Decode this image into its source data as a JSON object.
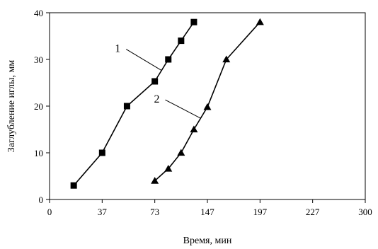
{
  "chart_data": {
    "type": "line",
    "title": "",
    "xlabel": "Время, мин",
    "ylabel": "Заглубление иглы, мм",
    "x_tick_labels": [
      "0",
      "37",
      "73",
      "147",
      "197",
      "227",
      "300"
    ],
    "y_tick_labels": [
      "0",
      "10",
      "20",
      "30",
      "40"
    ],
    "ylim": [
      0,
      40
    ],
    "grid": false,
    "legend": "none",
    "colors": {
      "line": "#000000",
      "axis": "#000000"
    },
    "series": [
      {
        "name": "1",
        "marker": "square",
        "x": [
          17,
          37,
          54,
          73,
          92,
          110,
          128
        ],
        "y": [
          3,
          10,
          20,
          25.3,
          30,
          34,
          38
        ]
      },
      {
        "name": "2",
        "marker": "triangle",
        "x": [
          73,
          92,
          110,
          128,
          147,
          165,
          197
        ],
        "y": [
          4,
          6.6,
          10,
          15,
          19.8,
          30,
          38
        ]
      }
    ]
  }
}
